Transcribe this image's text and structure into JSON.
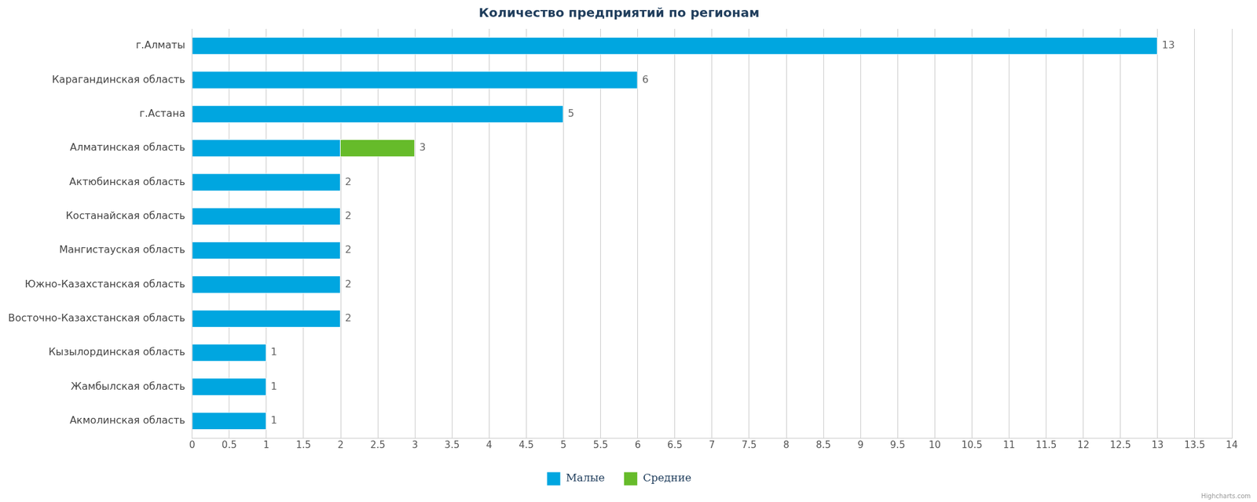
{
  "chart_data": {
    "type": "bar",
    "title": "Количество предприятий по регионам",
    "orientation": "horizontal",
    "stacked": true,
    "categories": [
      "г.Алматы",
      "Карагандинская область",
      "г.Астана",
      "Алматинская область",
      "Актюбинская область",
      "Костанайская область",
      "Мангистауская область",
      "Южно-Казахстанская область",
      "Восточно-Казахстанская область",
      "Кызылординская область",
      "Жамбылская область",
      "Акмолинская область"
    ],
    "series": [
      {
        "name": "Малые",
        "color": "#00a6e0",
        "values": [
          13,
          6,
          5,
          2,
          2,
          2,
          2,
          2,
          2,
          1,
          1,
          1
        ]
      },
      {
        "name": "Средние",
        "color": "#66bb2a",
        "values": [
          null,
          null,
          null,
          1,
          null,
          null,
          null,
          null,
          null,
          null,
          null,
          null
        ]
      }
    ],
    "totals": [
      13,
      6,
      5,
      3,
      2,
      2,
      2,
      2,
      2,
      1,
      1,
      1
    ],
    "data_labels": true,
    "xlim": [
      0,
      14
    ],
    "xticks": [
      0,
      0.5,
      1,
      1.5,
      2,
      2.5,
      3,
      3.5,
      4,
      4.5,
      5,
      5.5,
      6,
      6.5,
      7,
      7.5,
      8,
      8.5,
      9,
      9.5,
      10,
      10.5,
      11,
      11.5,
      12,
      12.5,
      13,
      13.5,
      14
    ],
    "grid": true,
    "legend": "bottom",
    "credits": "Highcharts.com"
  }
}
